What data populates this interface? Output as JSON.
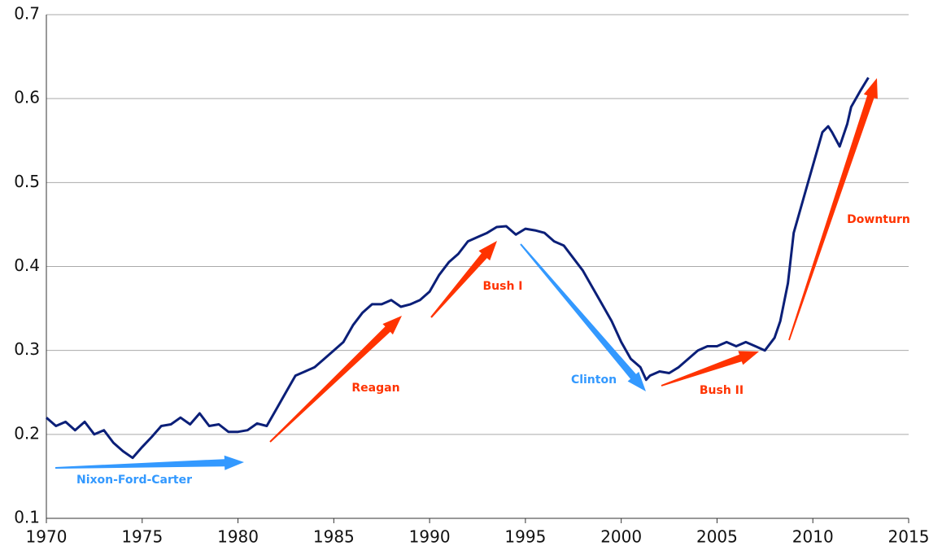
{
  "chart_data": {
    "type": "line",
    "x": [
      1970,
      1970.5,
      1971,
      1971.5,
      1972,
      1972.5,
      1973,
      1973.5,
      1974,
      1974.5,
      1975,
      1975.5,
      1976,
      1976.5,
      1977,
      1977.5,
      1978,
      1978.5,
      1979,
      1979.5,
      1980,
      1980.5,
      1981,
      1981.5,
      1982,
      1982.5,
      1983,
      1983.5,
      1984,
      1984.5,
      1985,
      1985.5,
      1986,
      1986.5,
      1987,
      1987.5,
      1988,
      1988.5,
      1989,
      1989.5,
      1990,
      1990.5,
      1991,
      1991.5,
      1992,
      1992.5,
      1993,
      1993.5,
      1994,
      1994.5,
      1995,
      1995.5,
      1996,
      1996.5,
      1997,
      1997.5,
      1998,
      1998.5,
      1999,
      1999.5,
      2000,
      2000.5,
      2001,
      2001.3,
      2001.5,
      2002,
      2002.5,
      2003,
      2003.5,
      2004,
      2004.5,
      2005,
      2005.5,
      2006,
      2006.5,
      2007,
      2007.5,
      2008,
      2008.3,
      2008.7,
      2009,
      2009.5,
      2010,
      2010.5,
      2010.8,
      2011,
      2011.4,
      2011.8,
      2012,
      2012.5,
      2012.9
    ],
    "series": [
      {
        "color": "#0b1f78",
        "values": [
          0.22,
          0.21,
          0.215,
          0.205,
          0.215,
          0.2,
          0.205,
          0.19,
          0.18,
          0.172,
          0.185,
          0.197,
          0.21,
          0.212,
          0.22,
          0.212,
          0.225,
          0.21,
          0.212,
          0.203,
          0.203,
          0.205,
          0.213,
          0.21,
          0.23,
          0.25,
          0.27,
          0.275,
          0.28,
          0.29,
          0.3,
          0.31,
          0.33,
          0.345,
          0.355,
          0.355,
          0.36,
          0.352,
          0.355,
          0.36,
          0.37,
          0.39,
          0.405,
          0.415,
          0.43,
          0.435,
          0.44,
          0.447,
          0.448,
          0.438,
          0.445,
          0.443,
          0.44,
          0.43,
          0.425,
          0.41,
          0.395,
          0.375,
          0.355,
          0.335,
          0.31,
          0.29,
          0.28,
          0.265,
          0.27,
          0.275,
          0.273,
          0.28,
          0.29,
          0.3,
          0.305,
          0.305,
          0.31,
          0.305,
          0.31,
          0.305,
          0.3,
          0.315,
          0.335,
          0.38,
          0.44,
          0.48,
          0.52,
          0.56,
          0.567,
          0.56,
          0.543,
          0.57,
          0.59,
          0.61,
          0.625
        ]
      }
    ],
    "xlim": [
      1970,
      2015
    ],
    "xticks": [
      1970,
      1975,
      1980,
      1985,
      1990,
      1995,
      2000,
      2005,
      2010,
      2015
    ],
    "ylim": [
      0.1,
      0.7
    ],
    "yticks": [
      0.1,
      0.2,
      0.3,
      0.4,
      0.5,
      0.6,
      0.7
    ],
    "grid": true,
    "annotations": [
      {
        "text": "Nixon-Ford-Carter",
        "color": "#3399ff"
      },
      {
        "text": "Reagan",
        "color": "#ff3300"
      },
      {
        "text": "Bush I",
        "color": "#ff3300"
      },
      {
        "text": "Clinton",
        "color": "#3399ff"
      },
      {
        "text": "Bush II",
        "color": "#ff3300"
      },
      {
        "text": "Downturn",
        "color": "#ff3300"
      }
    ]
  }
}
